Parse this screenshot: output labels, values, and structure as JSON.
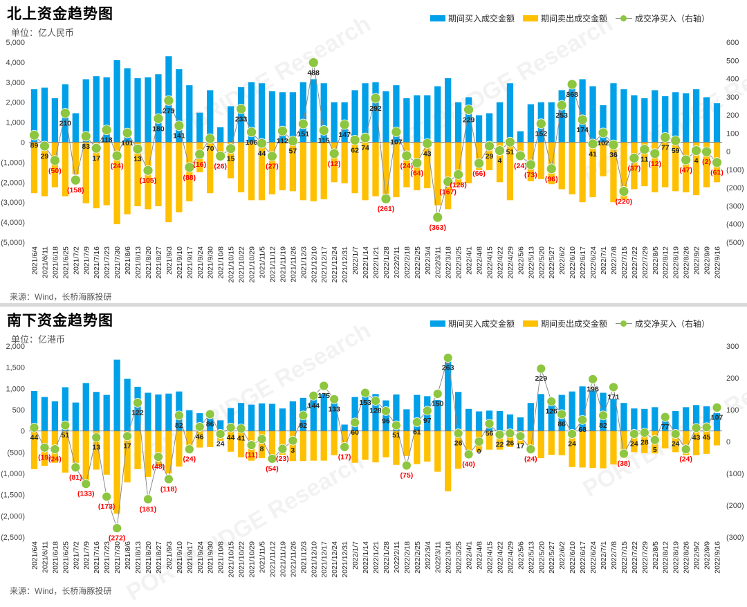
{
  "north": {
    "title": "北上资金趋势图",
    "unit": "单位：亿人民币",
    "source": "来源：Wind，长桥海豚投研",
    "legend": {
      "buy": "期间买入成交金额",
      "sell": "期间卖出成交金额",
      "net": "成交净买入（右轴）"
    },
    "watermark": "PORTBRIDGE Research"
  },
  "south": {
    "title": "南下资金趋势图",
    "unit": "单位：亿港币",
    "source": "来源：Wind，长桥海豚投研",
    "legend": {
      "buy": "期间买入成交金额",
      "sell": "期间卖出成交金额",
      "net": "成交净买入（右轴）"
    },
    "watermark": "PORTBRIDGE Research"
  },
  "colors": {
    "buy": "#00a0e9",
    "sell": "#ffc000",
    "net_marker": "#8dc63f",
    "net_line": "#8a8a8a",
    "neg_label": "#ff0000",
    "pos_label": "#262626"
  },
  "chart_data": [
    {
      "type": "bar",
      "title": "北上资金趋势图",
      "categories": [
        "2021/6/4",
        "2021/6/11",
        "2021/6/18",
        "2021/6/25",
        "2021/7/2",
        "2021/7/9",
        "2021/7/16",
        "2021/7/23",
        "2021/7/30",
        "2021/8/6",
        "2021/8/13",
        "2021/8/20",
        "2021/8/27",
        "2021/9/3",
        "2021/9/10",
        "2021/9/17",
        "2021/9/24",
        "2021/9/30",
        "2021/10/8",
        "2021/10/15",
        "2021/10/22",
        "2021/10/29",
        "2021/11/5",
        "2021/11/12",
        "2021/11/19",
        "2021/11/26",
        "2021/12/3",
        "2021/12/10",
        "2021/12/17",
        "2021/12/24",
        "2021/12/31",
        "2022/1/7",
        "2022/1/14",
        "2022/1/21",
        "2022/1/28",
        "2022/2/11",
        "2022/2/18",
        "2022/2/25",
        "2022/3/4",
        "2022/3/11",
        "2022/3/18",
        "2022/3/25",
        "2022/4/1",
        "2022/4/8",
        "2022/4/15",
        "2022/4/22",
        "2022/4/29",
        "2022/5/6",
        "2022/5/13",
        "2022/5/20",
        "2022/5/27",
        "2022/6/2",
        "2022/6/10",
        "2022/6/17",
        "2022/6/24",
        "2022/7/1",
        "2022/7/8",
        "2022/7/15",
        "2022/7/22",
        "2022/7/29",
        "2022/8/5",
        "2022/8/12",
        "2022/8/19",
        "2022/8/26",
        "2022/9/2",
        "2022/9/9",
        "2022/9/16"
      ],
      "ylim": [
        -5000,
        5000
      ],
      "y2lim": [
        -500,
        600
      ],
      "yticks": [
        "(5,000)",
        "(4,000)",
        "(3,000)",
        "(2,000)",
        "(1,000)",
        "0",
        "1,000",
        "2,000",
        "3,000",
        "4,000",
        "5,000"
      ],
      "y2ticks": [
        "(500)",
        "(400)",
        "(300)",
        "(200)",
        "(100)",
        "0",
        "100",
        "200",
        "300",
        "400",
        "500",
        "600"
      ],
      "legend_position": "top-right",
      "series": [
        {
          "name": "期间买入成交金额",
          "kind": "bar",
          "axis": "left",
          "values": [
            2650,
            2730,
            2200,
            2900,
            1450,
            3150,
            3300,
            3250,
            4100,
            3700,
            3200,
            3250,
            3400,
            4300,
            3650,
            2850,
            1480,
            2600,
            750,
            1800,
            2750,
            3000,
            2950,
            2550,
            2500,
            2500,
            3000,
            3150,
            2950,
            2000,
            2000,
            2600,
            2950,
            3000,
            2550,
            2850,
            2200,
            2350,
            2350,
            2800,
            3200,
            2000,
            2250,
            1350,
            1450,
            2000,
            2950,
            550,
            1900,
            2000,
            2000,
            2600,
            2700,
            3150,
            2800,
            1850,
            2950,
            2650,
            2350,
            2200,
            2600,
            2300,
            2500,
            2450,
            2650,
            2250,
            1950
          ]
        },
        {
          "name": "期间卖出成交金额",
          "kind": "bar",
          "axis": "left",
          "values": [
            -2550,
            -2700,
            -2250,
            -2700,
            -1600,
            -3050,
            -3300,
            -3150,
            -4100,
            -3600,
            -3200,
            -3350,
            -3200,
            -4000,
            -3500,
            -2950,
            -1500,
            -2550,
            -780,
            -1800,
            -2500,
            -2900,
            -2900,
            -2600,
            -2400,
            -2450,
            -2900,
            -2950,
            -2850,
            -2000,
            -2050,
            -2550,
            -2900,
            -2700,
            -2800,
            -2750,
            -2250,
            -2400,
            -2300,
            -3150,
            -3350,
            -2150,
            -2050,
            -1400,
            -1400,
            -2000,
            -2900,
            -550,
            -1950,
            -1850,
            -2100,
            -2350,
            -2600,
            -3000,
            -2750,
            -1700,
            -3000,
            -2850,
            -2350,
            -2200,
            -2500,
            -2250,
            -2450,
            -2500,
            -2650,
            -2250,
            -2000
          ]
        },
        {
          "name": "成交净买入（右轴）",
          "kind": "line",
          "axis": "right",
          "values": [
            89,
            29,
            -50,
            210,
            -158,
            83,
            17,
            118,
            -24,
            101,
            13,
            -105,
            180,
            279,
            141,
            -88,
            -16,
            70,
            -26,
            15,
            233,
            106,
            44,
            -27,
            112,
            57,
            151,
            488,
            115,
            -12,
            147,
            62,
            74,
            292,
            -261,
            107,
            -24,
            -64,
            43,
            -363,
            -167,
            -128,
            229,
            -66,
            29,
            4,
            51,
            -24,
            -73,
            152,
            -96,
            253,
            368,
            174,
            41,
            102,
            36,
            -220,
            -37,
            11,
            -12,
            77,
            59,
            -47,
            4,
            -2,
            -61
          ]
        }
      ]
    },
    {
      "type": "bar",
      "title": "南下资金趋势图",
      "categories": [
        "2021/6/4",
        "2021/6/11",
        "2021/6/18",
        "2021/6/25",
        "2021/7/2",
        "2021/7/9",
        "2021/7/16",
        "2021/7/23",
        "2021/7/30",
        "2021/8/6",
        "2021/8/13",
        "2021/8/20",
        "2021/8/27",
        "2021/9/3",
        "2021/9/10",
        "2021/9/17",
        "2021/9/24",
        "2021/9/30",
        "2021/10/8",
        "2021/10/15",
        "2021/10/22",
        "2021/10/29",
        "2021/11/5",
        "2021/11/12",
        "2021/11/19",
        "2021/11/26",
        "2021/12/3",
        "2021/12/10",
        "2021/12/17",
        "2021/12/24",
        "2021/12/31",
        "2022/1/7",
        "2022/1/14",
        "2022/1/21",
        "2022/1/28",
        "2022/2/11",
        "2022/2/18",
        "2022/2/25",
        "2022/3/4",
        "2022/3/11",
        "2022/3/18",
        "2022/3/25",
        "2022/4/1",
        "2022/4/8",
        "2022/4/15",
        "2022/4/22",
        "2022/4/29",
        "2022/5/6",
        "2022/5/13",
        "2022/5/20",
        "2022/5/27",
        "2022/6/2",
        "2022/6/10",
        "2022/6/17",
        "2022/6/24",
        "2022/7/1",
        "2022/7/8",
        "2022/7/15",
        "2022/7/22",
        "2022/7/29",
        "2022/8/5",
        "2022/8/12",
        "2022/8/19",
        "2022/8/26",
        "2022/9/2",
        "2022/9/9",
        "2022/9/16"
      ],
      "ylim": [
        -2500,
        2000
      ],
      "y2lim": [
        -300,
        300
      ],
      "yticks": [
        "(2,500)",
        "(2,000)",
        "(1,500)",
        "(1,000)",
        "(500)",
        "0",
        "500",
        "1,000",
        "1,500",
        "2,000"
      ],
      "y2ticks": [
        "(300)",
        "(200)",
        "(100)",
        "0",
        "100",
        "200",
        "300"
      ],
      "legend_position": "top-right",
      "series": [
        {
          "name": "期间买入成交金额",
          "kind": "bar",
          "axis": "left",
          "values": [
            940,
            800,
            700,
            1030,
            670,
            1130,
            920,
            850,
            1680,
            1230,
            1040,
            900,
            860,
            880,
            930,
            490,
            420,
            480,
            250,
            540,
            660,
            620,
            650,
            640,
            530,
            700,
            780,
            860,
            870,
            700,
            150,
            800,
            830,
            870,
            720,
            860,
            510,
            850,
            820,
            730,
            1800,
            920,
            520,
            460,
            480,
            470,
            390,
            320,
            660,
            870,
            680,
            850,
            930,
            1050,
            950,
            900,
            750,
            660,
            530,
            520,
            560,
            420,
            470,
            560,
            610,
            580,
            420
          ]
        },
        {
          "name": "期间卖出成交金额",
          "kind": "bar",
          "axis": "left",
          "values": [
            -900,
            -820,
            -750,
            -980,
            -760,
            -1270,
            -910,
            -1030,
            -1950,
            -1210,
            -900,
            -1080,
            -820,
            -1000,
            -840,
            -520,
            -390,
            -380,
            -230,
            -490,
            -620,
            -700,
            -640,
            -700,
            -560,
            -710,
            -710,
            -700,
            -700,
            -570,
            -320,
            -750,
            -680,
            -740,
            -620,
            -800,
            -590,
            -780,
            -720,
            -960,
            -1420,
            -890,
            -560,
            -490,
            -440,
            -440,
            -380,
            -310,
            -430,
            -640,
            -560,
            -570,
            -850,
            -860,
            -870,
            -880,
            -790,
            -640,
            -500,
            -520,
            -530,
            -410,
            -500,
            -570,
            -570,
            -540,
            -340
          ]
        },
        {
          "name": "成交净买入（右轴）",
          "kind": "line",
          "axis": "right",
          "values": [
            44,
            -19,
            -24,
            51,
            -81,
            -133,
            13,
            -173,
            -272,
            17,
            122,
            -181,
            -48,
            -118,
            82,
            -24,
            46,
            86,
            24,
            44,
            41,
            -11,
            8,
            -54,
            -23,
            3,
            82,
            144,
            175,
            133,
            -17,
            60,
            153,
            128,
            96,
            51,
            -75,
            61,
            97,
            150,
            263,
            26,
            -40,
            0,
            56,
            22,
            26,
            17,
            -24,
            229,
            126,
            86,
            24,
            68,
            196,
            82,
            171,
            -38,
            24,
            28,
            5,
            77,
            24,
            -24,
            43,
            45,
            107
          ]
        }
      ]
    }
  ]
}
